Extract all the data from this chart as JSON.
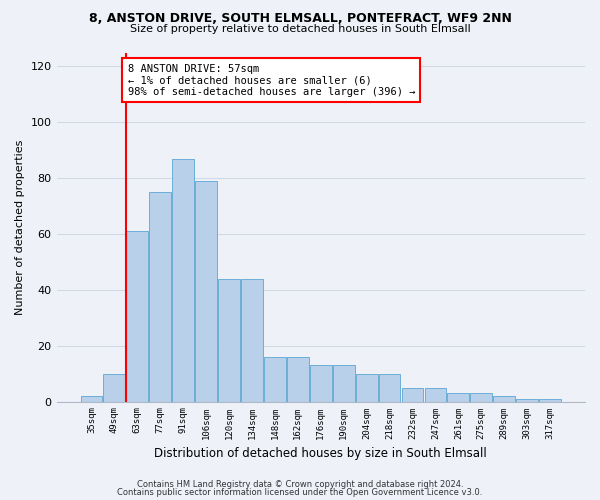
{
  "title1": "8, ANSTON DRIVE, SOUTH ELMSALL, PONTEFRACT, WF9 2NN",
  "title2": "Size of property relative to detached houses in South Elmsall",
  "xlabel": "Distribution of detached houses by size in South Elmsall",
  "ylabel": "Number of detached properties",
  "footnote1": "Contains HM Land Registry data © Crown copyright and database right 2024.",
  "footnote2": "Contains public sector information licensed under the Open Government Licence v3.0.",
  "bar_labels": [
    "35sqm",
    "49sqm",
    "63sqm",
    "77sqm",
    "91sqm",
    "106sqm",
    "120sqm",
    "134sqm",
    "148sqm",
    "162sqm",
    "176sqm",
    "190sqm",
    "204sqm",
    "218sqm",
    "232sqm",
    "247sqm",
    "261sqm",
    "275sqm",
    "289sqm",
    "303sqm",
    "317sqm"
  ],
  "bar_values": [
    2,
    10,
    61,
    75,
    87,
    79,
    44,
    44,
    16,
    16,
    13,
    13,
    10,
    10,
    5,
    5,
    3,
    3,
    2,
    1,
    1
  ],
  "bar_color": "#b8d0ea",
  "bar_edge_color": "#6aaed6",
  "grid_color": "#d0d8e8",
  "annotation_text": "8 ANSTON DRIVE: 57sqm\n← 1% of detached houses are smaller (6)\n98% of semi-detached houses are larger (396) →",
  "annotation_box_color": "white",
  "annotation_box_edge": "red",
  "vline_color": "red",
  "vline_x": 1.5,
  "ylim": [
    0,
    125
  ],
  "yticks": [
    0,
    20,
    40,
    60,
    80,
    100,
    120
  ],
  "background_color": "#eef2f8"
}
